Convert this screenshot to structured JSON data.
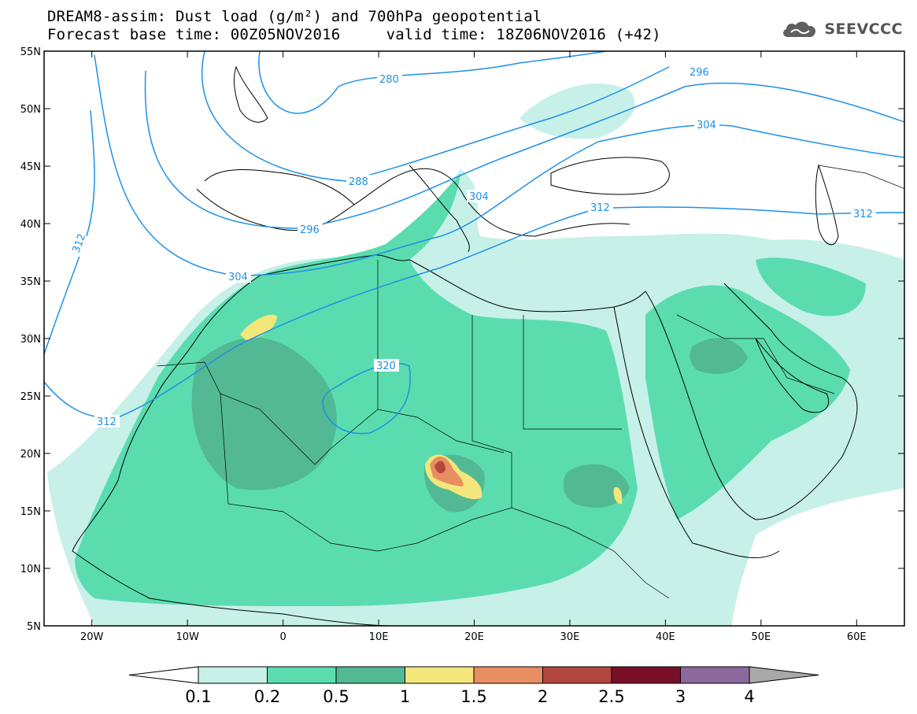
{
  "title": {
    "line1": "DREAM8-assim: Dust load (g/m²) and 700hPa geopotential",
    "line2": "Forecast base time: 00Z05NOV2016     valid time: 18Z06NOV2016 (+42)"
  },
  "logo": {
    "text": "SEEVCCC",
    "icon": "cloud-icon"
  },
  "map": {
    "lon_range": [
      -25,
      65
    ],
    "lat_range": [
      5,
      55
    ],
    "lat_ticks": [
      "55N",
      "50N",
      "45N",
      "40N",
      "35N",
      "30N",
      "25N",
      "20N",
      "15N",
      "10N",
      "5N"
    ],
    "lon_ticks": [
      "20W",
      "10W",
      "0",
      "10E",
      "20E",
      "30E",
      "40E",
      "50E",
      "60E"
    ],
    "contour_color": "#1e90e8",
    "contour_labels": [
      "280",
      "296",
      "304",
      "288",
      "304",
      "296",
      "312",
      "312",
      "312",
      "304",
      "320",
      "312"
    ]
  },
  "colorbar": {
    "labels": [
      "0.1",
      "0.2",
      "0.5",
      "1",
      "1.5",
      "2",
      "2.5",
      "3",
      "4"
    ],
    "colors": [
      "#c6f0e8",
      "#5bdcae",
      "#52b994",
      "#f3e67a",
      "#e98d62",
      "#b3463d",
      "#7a0f2a",
      "#8a6a9e"
    ],
    "over_color": "#a9a9a9",
    "under_color": "#ffffff"
  }
}
